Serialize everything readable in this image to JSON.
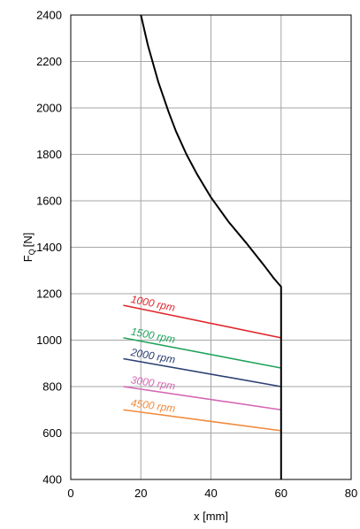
{
  "chart_data": {
    "type": "line",
    "title": "",
    "xlabel": "x [mm]",
    "ylabel": "F",
    "ylabel_sub": "Q",
    "ylabel_unit": "[N]",
    "xlim": [
      0,
      80
    ],
    "ylim": [
      400,
      2400
    ],
    "xticks": [
      0,
      20,
      40,
      60,
      80
    ],
    "yticks": [
      400,
      600,
      800,
      1000,
      1200,
      1400,
      1600,
      1800,
      2000,
      2200,
      2400
    ],
    "grid": true,
    "limit_curve": {
      "color": "#000000",
      "points": [
        [
          20,
          2400
        ],
        [
          22,
          2270
        ],
        [
          25,
          2110
        ],
        [
          28,
          1980
        ],
        [
          30,
          1900
        ],
        [
          33,
          1800
        ],
        [
          36,
          1715
        ],
        [
          40,
          1615
        ],
        [
          45,
          1510
        ],
        [
          50,
          1420
        ],
        [
          55,
          1325
        ],
        [
          58,
          1265
        ],
        [
          60,
          1230
        ],
        [
          60,
          400
        ]
      ]
    },
    "series": [
      {
        "name": "1000 rpm",
        "color": "#e0262b",
        "x": [
          15,
          60
        ],
        "y": [
          1150,
          1010
        ]
      },
      {
        "name": "1500 rpm",
        "color": "#1fa35a",
        "x": [
          15,
          60
        ],
        "y": [
          1010,
          880
        ]
      },
      {
        "name": "2000 rpm",
        "color": "#2b3f73",
        "x": [
          15,
          60
        ],
        "y": [
          920,
          800
        ]
      },
      {
        "name": "3000 rpm",
        "color": "#d466b4",
        "x": [
          15,
          60
        ],
        "y": [
          800,
          700
        ]
      },
      {
        "name": "4500 rpm",
        "color": "#f08a3c",
        "x": [
          15,
          60
        ],
        "y": [
          700,
          610
        ]
      }
    ]
  }
}
